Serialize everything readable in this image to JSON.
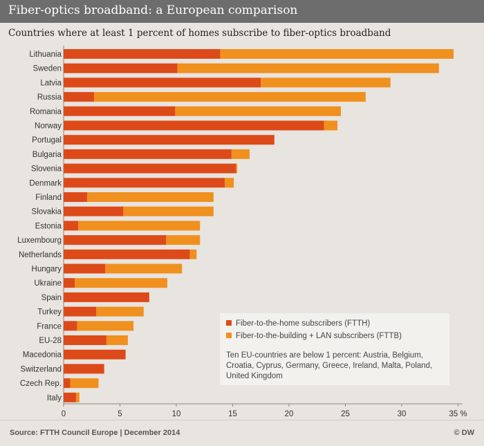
{
  "header": {
    "title": "Fiber-optics broadband: a European comparison",
    "subtitle": "Countries where at least 1 percent of homes subscribe to fiber-optics broadband"
  },
  "footer": {
    "source": "Source: FTTH Council Europe | December 2014",
    "credit": "© DW"
  },
  "legend": {
    "ftth_label": "Fiber-to-the-home subscribers (FTTH)",
    "fttb_label": "Fiber-to-the-building + LAN subscribers (FTTB)",
    "note": "Ten EU-countries are below 1 percent: Austria, Belgium, Croatia, Cyprus, Germany, Greece, Ireland, Malta, Poland, United Kingdom"
  },
  "colors": {
    "ftth": "#dd4a1a",
    "fttb": "#f0901e",
    "background": "#e8e4df",
    "title_bar": "#6d6d6d"
  },
  "chart_data": {
    "type": "bar",
    "orientation": "horizontal",
    "stacked": true,
    "categories": [
      "Lithuania",
      "Sweden",
      "Latvia",
      "Russia",
      "Romania",
      "Norway",
      "Portugal",
      "Bulgaria",
      "Slovenia",
      "Denmark",
      "Finland",
      "Slovakia",
      "Estonia",
      "Luxembourg",
      "Netherlands",
      "Hungary",
      "Ukraine",
      "Spain",
      "Turkey",
      "France",
      "EU-28",
      "Macedonia",
      "Switzerland",
      "Czech Rep.",
      "Italy"
    ],
    "series": [
      {
        "name": "Fiber-to-the-home subscribers (FTTH)",
        "values": [
          13.9,
          10.1,
          17.5,
          2.7,
          9.9,
          23.1,
          18.7,
          14.9,
          15.3,
          14.3,
          2.1,
          5.3,
          1.3,
          9.1,
          11.2,
          3.7,
          1.0,
          7.6,
          2.9,
          1.2,
          3.8,
          5.5,
          3.6,
          0.6,
          1.1
        ]
      },
      {
        "name": "Fiber-to-the-building + LAN subscribers (FTTB)",
        "values": [
          20.7,
          23.2,
          11.5,
          24.1,
          14.7,
          1.2,
          0.0,
          1.6,
          0.1,
          0.8,
          11.2,
          8.0,
          10.8,
          3.0,
          0.6,
          6.8,
          8.2,
          0.0,
          4.2,
          5.0,
          1.9,
          0.0,
          0.0,
          2.5,
          0.3
        ]
      }
    ],
    "xlim": [
      0,
      35
    ],
    "xticks": [
      "0",
      "5",
      "10",
      "15",
      "20",
      "25",
      "30",
      "35 %"
    ],
    "grid": false,
    "legend_position": "bottom-right"
  }
}
